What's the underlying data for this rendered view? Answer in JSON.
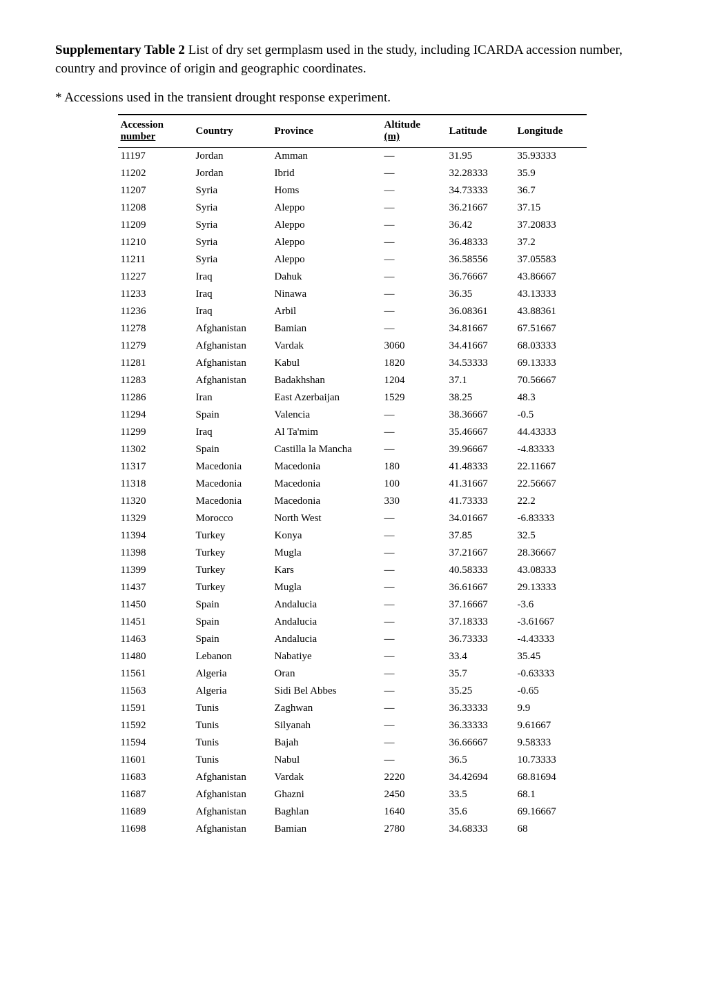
{
  "title": {
    "bold": "Supplementary Table 2",
    "rest": " List of dry set germplasm used in the study, including ICARDA accession number, country and province of origin and geographic coordinates."
  },
  "footnote": "* Accessions used in the transient drought response experiment.",
  "headers": {
    "accession_l1": "Accession",
    "accession_l2": "number",
    "country": "Country",
    "province": "Province",
    "altitude_l1": "Altitude",
    "altitude_l2": "(m)",
    "latitude": "Latitude",
    "longitude": "Longitude"
  },
  "rows": [
    {
      "acc": "11197",
      "ctry": "Jordan",
      "prov": "Amman",
      "alt": "—",
      "lat": "31.95",
      "lon": "35.93333"
    },
    {
      "acc": "11202",
      "ctry": "Jordan",
      "prov": "Ibrid",
      "alt": "—",
      "lat": "32.28333",
      "lon": "35.9"
    },
    {
      "acc": "11207",
      "ctry": "Syria",
      "prov": "Homs",
      "alt": "—",
      "lat": "34.73333",
      "lon": "36.7"
    },
    {
      "acc": "11208",
      "ctry": "Syria",
      "prov": "Aleppo",
      "alt": "—",
      "lat": "36.21667",
      "lon": "37.15"
    },
    {
      "acc": "11209",
      "ctry": "Syria",
      "prov": "Aleppo",
      "alt": "—",
      "lat": "36.42",
      "lon": "37.20833"
    },
    {
      "acc": "11210",
      "ctry": "Syria",
      "prov": "Aleppo",
      "alt": "—",
      "lat": "36.48333",
      "lon": "37.2"
    },
    {
      "acc": "11211",
      "ctry": "Syria",
      "prov": "Aleppo",
      "alt": "—",
      "lat": "36.58556",
      "lon": "37.05583"
    },
    {
      "acc": "11227",
      "ctry": "Iraq",
      "prov": "Dahuk",
      "alt": "—",
      "lat": "36.76667",
      "lon": "43.86667"
    },
    {
      "acc": "11233",
      "ctry": "Iraq",
      "prov": "Ninawa",
      "alt": "—",
      "lat": "36.35",
      "lon": "43.13333"
    },
    {
      "acc": "11236",
      "ctry": "Iraq",
      "prov": "Arbil",
      "alt": "—",
      "lat": "36.08361",
      "lon": "43.88361"
    },
    {
      "acc": "11278",
      "ctry": "Afghanistan",
      "prov": "Bamian",
      "alt": "—",
      "lat": "34.81667",
      "lon": "67.51667"
    },
    {
      "acc": "11279",
      "ctry": "Afghanistan",
      "prov": "Vardak",
      "alt": "3060",
      "lat": "34.41667",
      "lon": "68.03333"
    },
    {
      "acc": "11281",
      "ctry": "Afghanistan",
      "prov": "Kabul",
      "alt": "1820",
      "lat": "34.53333",
      "lon": "69.13333"
    },
    {
      "acc": "11283",
      "ctry": "Afghanistan",
      "prov": "Badakhshan",
      "alt": "1204",
      "lat": "37.1",
      "lon": "70.56667"
    },
    {
      "acc": "11286",
      "ctry": "Iran",
      "prov": "East Azerbaijan",
      "alt": "1529",
      "lat": "38.25",
      "lon": "48.3"
    },
    {
      "acc": "11294",
      "ctry": "Spain",
      "prov": "Valencia",
      "alt": "—",
      "lat": "38.36667",
      "lon": "-0.5"
    },
    {
      "acc": "11299",
      "ctry": "Iraq",
      "prov": "Al Ta'mim",
      "alt": "—",
      "lat": "35.46667",
      "lon": "44.43333"
    },
    {
      "acc": "11302",
      "ctry": "Spain",
      "prov": "Castilla la Mancha",
      "alt": "—",
      "lat": "39.96667",
      "lon": "-4.83333"
    },
    {
      "acc": "11317",
      "ctry": "Macedonia",
      "prov": "Macedonia",
      "alt": "180",
      "lat": "41.48333",
      "lon": "22.11667"
    },
    {
      "acc": "11318",
      "ctry": "Macedonia",
      "prov": "Macedonia",
      "alt": "100",
      "lat": "41.31667",
      "lon": "22.56667"
    },
    {
      "acc": "11320",
      "ctry": "Macedonia",
      "prov": "Macedonia",
      "alt": "330",
      "lat": "41.73333",
      "lon": "22.2"
    },
    {
      "acc": "11329",
      "ctry": "Morocco",
      "prov": "North West",
      "alt": "—",
      "lat": "34.01667",
      "lon": "-6.83333"
    },
    {
      "acc": "11394",
      "ctry": "Turkey",
      "prov": "Konya",
      "alt": "—",
      "lat": "37.85",
      "lon": "32.5"
    },
    {
      "acc": "11398",
      "ctry": "Turkey",
      "prov": "Mugla",
      "alt": "—",
      "lat": "37.21667",
      "lon": "28.36667"
    },
    {
      "acc": "11399",
      "ctry": "Turkey",
      "prov": "Kars",
      "alt": "—",
      "lat": "40.58333",
      "lon": "43.08333"
    },
    {
      "acc": "11437",
      "ctry": "Turkey",
      "prov": "Mugla",
      "alt": "—",
      "lat": "36.61667",
      "lon": "29.13333"
    },
    {
      "acc": "11450",
      "ctry": "Spain",
      "prov": "Andalucia",
      "alt": "—",
      "lat": "37.16667",
      "lon": "-3.6"
    },
    {
      "acc": "11451",
      "ctry": "Spain",
      "prov": "Andalucia",
      "alt": "—",
      "lat": "37.18333",
      "lon": "-3.61667"
    },
    {
      "acc": "11463",
      "ctry": "Spain",
      "prov": "Andalucia",
      "alt": "—",
      "lat": "36.73333",
      "lon": "-4.43333"
    },
    {
      "acc": "11480",
      "ctry": "Lebanon",
      "prov": "Nabatiye",
      "alt": "—",
      "lat": "33.4",
      "lon": "35.45"
    },
    {
      "acc": "11561",
      "ctry": "Algeria",
      "prov": "Oran",
      "alt": "—",
      "lat": "35.7",
      "lon": "-0.63333"
    },
    {
      "acc": "11563",
      "ctry": "Algeria",
      "prov": "Sidi Bel Abbes",
      "alt": "—",
      "lat": "35.25",
      "lon": "-0.65"
    },
    {
      "acc": "11591",
      "ctry": "Tunis",
      "prov": "Zaghwan",
      "alt": "—",
      "lat": "36.33333",
      "lon": "9.9"
    },
    {
      "acc": "11592",
      "ctry": "Tunis",
      "prov": "Silyanah",
      "alt": "—",
      "lat": "36.33333",
      "lon": "9.61667"
    },
    {
      "acc": "11594",
      "ctry": "Tunis",
      "prov": "Bajah",
      "alt": "—",
      "lat": "36.66667",
      "lon": "9.58333"
    },
    {
      "acc": "11601",
      "ctry": "Tunis",
      "prov": "Nabul",
      "alt": "—",
      "lat": "36.5",
      "lon": "10.73333"
    },
    {
      "acc": "11683",
      "ctry": "Afghanistan",
      "prov": "Vardak",
      "alt": "2220",
      "lat": "34.42694",
      "lon": "68.81694"
    },
    {
      "acc": "11687",
      "ctry": "Afghanistan",
      "prov": "Ghazni",
      "alt": "2450",
      "lat": "33.5",
      "lon": "68.1"
    },
    {
      "acc": "11689",
      "ctry": "Afghanistan",
      "prov": "Baghlan",
      "alt": "1640",
      "lat": "35.6",
      "lon": "69.16667"
    },
    {
      "acc": "11698",
      "ctry": "Afghanistan",
      "prov": "Bamian",
      "alt": "2780",
      "lat": "34.68333",
      "lon": "68"
    }
  ]
}
